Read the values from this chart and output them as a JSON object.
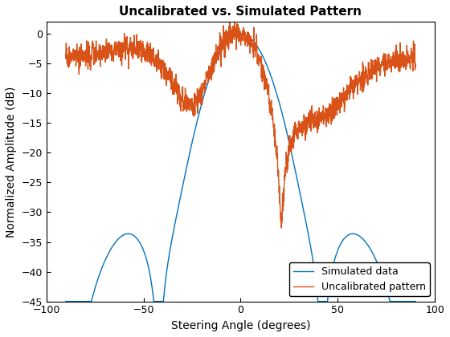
{
  "title": "Uncalibrated vs. Simulated Pattern",
  "xlabel": "Steering Angle (degrees)",
  "ylabel": "Normalized Amplitude (dB)",
  "xlim": [
    -100,
    100
  ],
  "ylim": [
    -45,
    2
  ],
  "yticks": [
    0,
    -5,
    -10,
    -15,
    -20,
    -25,
    -30,
    -35,
    -40,
    -45
  ],
  "xticks": [
    -100,
    -50,
    0,
    50,
    100
  ],
  "simulated_color": "#0072BD",
  "uncalibrated_color": "#D95319",
  "legend_labels": [
    "Simulated data",
    "Uncalibrated pattern"
  ],
  "figsize": [
    5.6,
    4.2
  ],
  "dpi": 100
}
